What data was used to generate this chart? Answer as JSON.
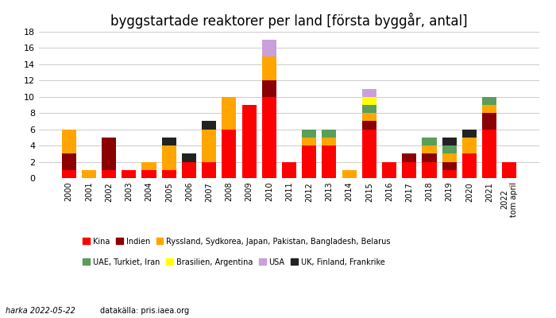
{
  "title": "byggstartade reaktorer per land [första byggår, antal]",
  "years": [
    "2000",
    "2001",
    "2002",
    "2003",
    "2004",
    "2005",
    "2006",
    "2007",
    "2008",
    "2009",
    "2010",
    "2011",
    "2012",
    "2013",
    "2014",
    "2015",
    "2016",
    "2017",
    "2018",
    "2019",
    "2020",
    "2021",
    "2022\ntom april"
  ],
  "series": {
    "Kina": [
      1,
      0,
      1,
      1,
      1,
      1,
      2,
      2,
      6,
      9,
      10,
      2,
      4,
      4,
      0,
      6,
      2,
      2,
      2,
      1,
      3,
      6,
      2
    ],
    "Indien": [
      2,
      0,
      4,
      0,
      0,
      0,
      0,
      0,
      0,
      0,
      2,
      0,
      0,
      0,
      0,
      1,
      0,
      1,
      1,
      1,
      0,
      2,
      0
    ],
    "Ryssland, Sydkorea, Japan, Pakistan, Bangladesh, Belarus": [
      3,
      1,
      0,
      0,
      1,
      3,
      0,
      4,
      4,
      0,
      3,
      0,
      1,
      1,
      1,
      1,
      0,
      0,
      1,
      1,
      2,
      1,
      0
    ],
    "UAE, Turkiet, Iran": [
      0,
      0,
      0,
      0,
      0,
      0,
      0,
      0,
      0,
      0,
      0,
      0,
      1,
      1,
      0,
      1,
      0,
      0,
      1,
      1,
      0,
      1,
      0
    ],
    "Brasilien, Argentina": [
      0,
      0,
      0,
      0,
      0,
      0,
      0,
      0,
      0,
      0,
      0,
      0,
      0,
      0,
      0,
      1,
      0,
      0,
      0,
      0,
      0,
      0,
      0
    ],
    "USA": [
      0,
      0,
      0,
      0,
      0,
      0,
      0,
      0,
      0,
      0,
      2,
      0,
      0,
      0,
      0,
      1,
      0,
      0,
      0,
      0,
      0,
      0,
      0
    ],
    "UK, Finland, Frankrike": [
      0,
      0,
      0,
      0,
      0,
      1,
      1,
      1,
      0,
      0,
      0,
      0,
      0,
      0,
      0,
      0,
      0,
      0,
      0,
      1,
      1,
      0,
      0
    ]
  },
  "colors": {
    "Kina": "#FF0000",
    "Indien": "#8B0000",
    "Ryssland, Sydkorea, Japan, Pakistan, Bangladesh, Belarus": "#FFA500",
    "UAE, Turkiet, Iran": "#5A9E5A",
    "Brasilien, Argentina": "#FFFF00",
    "USA": "#C9A0DC",
    "UK, Finland, Frankrike": "#222222"
  },
  "ylim": [
    0,
    18
  ],
  "yticks": [
    0,
    2,
    4,
    6,
    8,
    10,
    12,
    14,
    16,
    18
  ],
  "footer_left": "harka 2022-05-22",
  "footer_right": "datakälla: pris.iaea.org",
  "bg_color": "#FFFFFF"
}
